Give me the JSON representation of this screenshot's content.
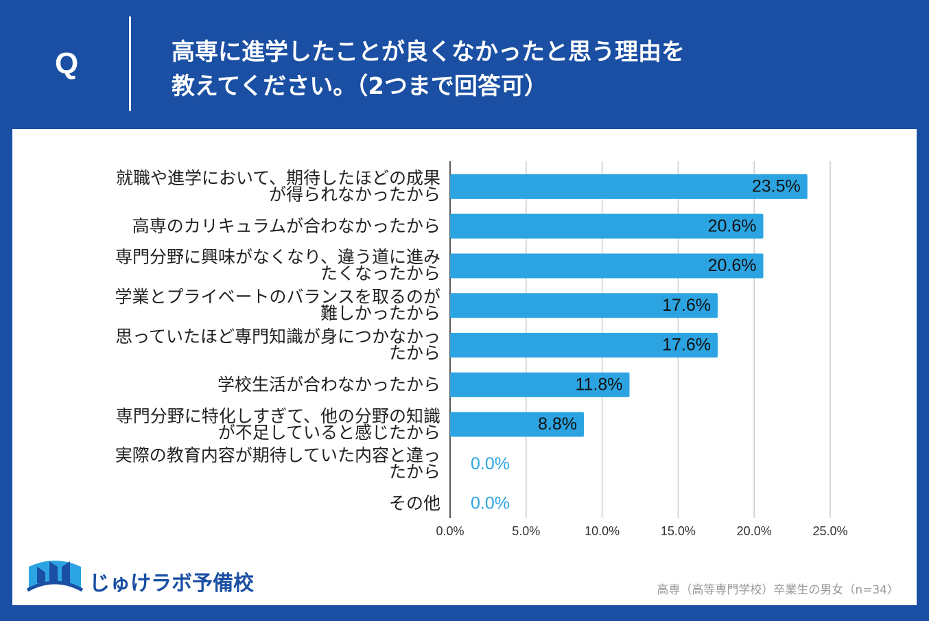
{
  "header": {
    "mark": "Q",
    "title_lines": [
      "高専に進学したことが良くなかったと思う理由を",
      "教えてください。（2つまで回答可）"
    ]
  },
  "chart_data": {
    "type": "barh",
    "categories": [
      "就職や進学において、期待したほどの成果が得られなかったから",
      "高専のカリキュラムが合わなかったから",
      "専門分野に興味がなくなり、違う道に進みたくなったから",
      "学業とプライベートのバランスを取るのが難しかったから",
      "思っていたほど専門知識が身につかなかったから",
      "学校生活が合わなかったから",
      "専門分野に特化しすぎて、他の分野の知識が不足していると感じたから",
      "実際の教育内容が期待していた内容と違ったから",
      "その他"
    ],
    "values": [
      23.5,
      20.6,
      20.6,
      17.6,
      17.6,
      11.8,
      8.8,
      0,
      0
    ],
    "value_labels": [
      "23.5%",
      "20.6%",
      "20.6%",
      "17.6%",
      "17.6%",
      "11.8%",
      "8.8%",
      "0.0%",
      "0.0%"
    ],
    "color": "#2ca4e2",
    "xlim": [
      0,
      25
    ],
    "xticks": [
      {
        "value": 0,
        "label": "0.0%"
      },
      {
        "value": 5,
        "label": "5.0%"
      },
      {
        "value": 10,
        "label": "10.0%"
      },
      {
        "value": 15,
        "label": "15.0%"
      },
      {
        "value": 20,
        "label": "20.0%"
      },
      {
        "value": 25,
        "label": "25.0%"
      }
    ],
    "grid": true
  },
  "footer": {
    "logo": "じゅけラボ予備校",
    "note": "高専（高等専門学校）卒業生の男女（n=34）"
  }
}
